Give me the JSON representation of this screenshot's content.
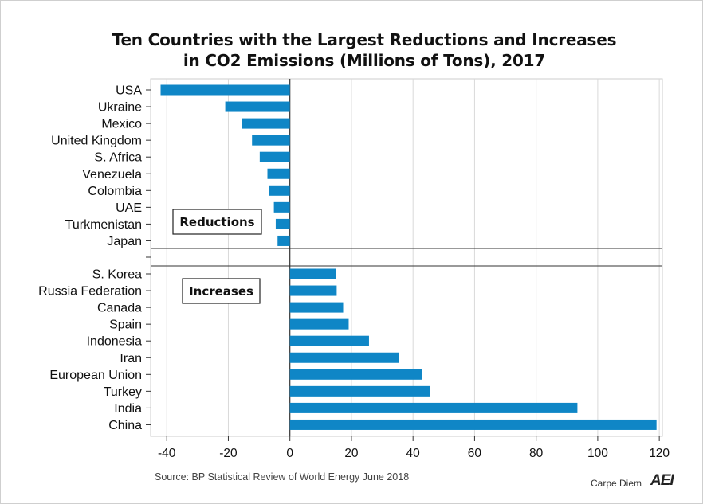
{
  "title_line1": "Ten Countries with the Largest Reductions and Increases",
  "title_line2": "in CO2 Emissions (Millions of Tons), 2017",
  "source": "Source: BP Statistical Review of World Energy June 2018",
  "brand_text": "Carpe Diem",
  "brand_logo": "AEI",
  "colors": {
    "bar": "#0f86c6",
    "grid": "#d9d9d9",
    "axis": "#333333"
  },
  "chart_data": {
    "type": "bar",
    "orientation": "horizontal",
    "title": "Ten Countries with the Largest Reductions and Increases in CO2 Emissions (Millions of Tons), 2017",
    "xlim": [
      -45,
      120
    ],
    "x_ticks": [
      -40,
      -20,
      0,
      20,
      40,
      60,
      80,
      100,
      120
    ],
    "grid": true,
    "groups": [
      {
        "name": "Reductions",
        "categories": [
          "USA",
          "Ukraine",
          "Mexico",
          "United Kingdom",
          "S. Africa",
          "Venezuela",
          "Colombia",
          "UAE",
          "Turkmenistan",
          "Japan"
        ],
        "values": [
          -42,
          -21,
          -15.5,
          -12.3,
          -9.8,
          -7.3,
          -6.9,
          -5.2,
          -4.6,
          -4
        ]
      },
      {
        "name": "Increases",
        "categories": [
          "S. Korea",
          "Russia Federation",
          "Canada",
          "Spain",
          "Indonesia",
          "Iran",
          "European Union",
          "Turkey",
          "India",
          "China"
        ],
        "values": [
          14.9,
          15.2,
          17.3,
          19.1,
          25.7,
          35.3,
          42.8,
          45.6,
          93.4,
          119.1
        ]
      }
    ]
  }
}
